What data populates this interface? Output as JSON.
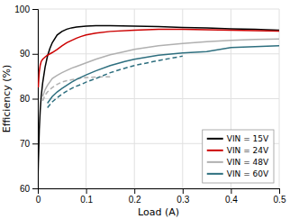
{
  "chart_data": {
    "type": "line",
    "xlabel": "Load (A)",
    "ylabel": "Efficiency (%)",
    "xlim": [
      0,
      0.5
    ],
    "ylim": [
      60,
      100
    ],
    "xticks": [
      0.0,
      0.1,
      0.2,
      0.3,
      0.4,
      0.5
    ],
    "yticks": [
      60,
      70,
      80,
      90,
      100
    ],
    "grid": true,
    "legend": "lower right",
    "series": [
      {
        "color": "#b0b0b0",
        "line_style": "dashed",
        "x": [
          0.01,
          0.015,
          0.02,
          0.03,
          0.04,
          0.05,
          0.06,
          0.07,
          0.08,
          0.09,
          0.1,
          0.12,
          0.15
        ],
        "values": [
          79.5,
          80.8,
          81.5,
          82.5,
          83.2,
          83.7,
          84.0,
          84.2,
          84.4,
          84.6,
          84.7,
          84.8,
          84.9
        ]
      },
      {
        "color": "#2e6f7f",
        "line_style": "dashed",
        "x": [
          0.02,
          0.03,
          0.04,
          0.05,
          0.06,
          0.07,
          0.08,
          0.09,
          0.1,
          0.12,
          0.15,
          0.18,
          0.2,
          0.25,
          0.3
        ],
        "values": [
          78.0,
          79.3,
          80.2,
          81.0,
          81.7,
          82.3,
          82.8,
          83.2,
          83.7,
          84.5,
          85.8,
          86.8,
          87.4,
          88.5,
          89.5
        ]
      },
      {
        "name": "VIN = 15V",
        "color": "#000000",
        "line_style": "solid",
        "x": [
          0.0005,
          0.001,
          0.002,
          0.003,
          0.005,
          0.007,
          0.01,
          0.015,
          0.02,
          0.025,
          0.03,
          0.04,
          0.05,
          0.06,
          0.07,
          0.08,
          0.09,
          0.1,
          0.12,
          0.15,
          0.2,
          0.25,
          0.3,
          0.35,
          0.4,
          0.45,
          0.5
        ],
        "values": [
          63.0,
          65.5,
          69.0,
          73.0,
          77.5,
          80.5,
          83.5,
          87.0,
          89.5,
          91.2,
          92.5,
          94.2,
          95.0,
          95.5,
          95.8,
          96.0,
          96.1,
          96.2,
          96.3,
          96.3,
          96.2,
          96.1,
          95.9,
          95.8,
          95.6,
          95.5,
          95.3
        ]
      },
      {
        "name": "VIN = 24V",
        "color": "#cc0000",
        "line_style": "solid",
        "x": [
          0.001,
          0.002,
          0.003,
          0.005,
          0.007,
          0.01,
          0.015,
          0.02,
          0.025,
          0.03,
          0.04,
          0.05,
          0.06,
          0.07,
          0.08,
          0.09,
          0.1,
          0.12,
          0.15,
          0.2,
          0.25,
          0.3,
          0.35,
          0.4,
          0.45,
          0.5
        ],
        "values": [
          82.5,
          84.5,
          86.0,
          87.5,
          88.3,
          88.8,
          89.3,
          89.7,
          90.0,
          90.3,
          91.0,
          91.8,
          92.5,
          93.0,
          93.5,
          93.9,
          94.2,
          94.6,
          95.0,
          95.3,
          95.5,
          95.5,
          95.4,
          95.3,
          95.2,
          95.1
        ]
      },
      {
        "name": "VIN = 48V",
        "color": "#b0b0b0",
        "line_style": "solid",
        "x": [
          0.01,
          0.015,
          0.02,
          0.03,
          0.04,
          0.05,
          0.06,
          0.07,
          0.08,
          0.09,
          0.1,
          0.12,
          0.15,
          0.18,
          0.2,
          0.25,
          0.3,
          0.35,
          0.4,
          0.45,
          0.5
        ],
        "values": [
          80.5,
          82.0,
          83.0,
          84.5,
          85.2,
          85.8,
          86.3,
          86.8,
          87.2,
          87.6,
          88.0,
          88.8,
          89.8,
          90.5,
          91.0,
          91.8,
          92.3,
          92.7,
          93.0,
          93.2,
          93.3
        ]
      },
      {
        "name": "VIN = 60V",
        "color": "#2e6f7f",
        "line_style": "solid",
        "x": [
          0.02,
          0.03,
          0.04,
          0.05,
          0.06,
          0.07,
          0.08,
          0.09,
          0.1,
          0.12,
          0.15,
          0.18,
          0.2,
          0.25,
          0.3,
          0.35,
          0.4,
          0.45,
          0.5
        ],
        "values": [
          79.0,
          80.5,
          81.5,
          82.3,
          83.0,
          83.7,
          84.3,
          84.8,
          85.3,
          86.2,
          87.4,
          88.3,
          88.8,
          89.7,
          90.2,
          90.5,
          91.4,
          91.6,
          91.8
        ]
      }
    ]
  }
}
